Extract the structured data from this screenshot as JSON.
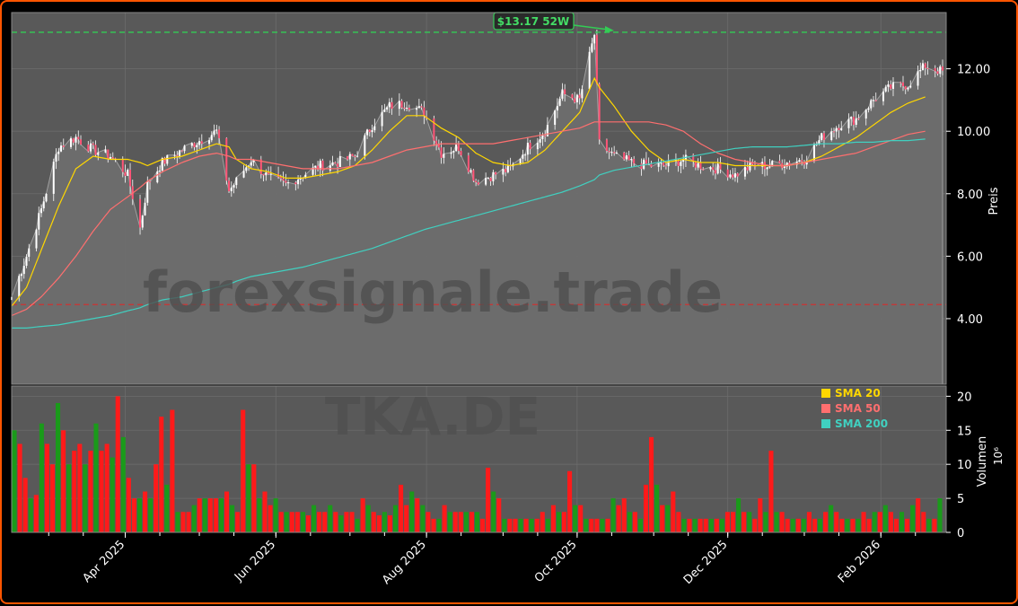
{
  "title": "",
  "watermark": {
    "line1": "forexsignale.trade",
    "line2": "TKA.DE"
  },
  "colors": {
    "background": "#000000",
    "panel": "#595959",
    "border": "#ff5500",
    "up": "#1a9a1a",
    "down": "#ff1a1a",
    "sma20": "#ffd700",
    "sma50": "#ff6f6f",
    "sma200": "#40d0c0",
    "high_line": "#33cc55",
    "low_line": "#cc3333"
  },
  "chart_data": [
    {
      "type": "line",
      "subtype": "candlestick-with-area",
      "ylabel": "Preis",
      "ylim": [
        1.9,
        13.8
      ],
      "yticks": [
        "4.00",
        "6.00",
        "8.00",
        "10.00",
        "12.00"
      ],
      "ytick_values": [
        4,
        6,
        8,
        10,
        12
      ],
      "grid": true,
      "high_52w": {
        "label": "$13.17 52W",
        "value": 13.17,
        "date": "2025-10-08"
      },
      "low_reference": {
        "value": 4.45
      },
      "x_range": [
        "2025-02-14",
        "2026-02-26"
      ],
      "xtick_labels": [
        "Apr 2025",
        "Jun 2025",
        "Aug 2025",
        "Oct 2025",
        "Dec 2025",
        "Feb 2026"
      ],
      "xtick_dates": [
        "2025-04-01",
        "2025-06-01",
        "2025-08-01",
        "2025-10-01",
        "2025-12-01",
        "2026-02-01"
      ],
      "close_series": {
        "dates": [
          "2025-02-14",
          "2025-02-20",
          "2025-02-26",
          "2025-03-05",
          "2025-03-12",
          "2025-03-19",
          "2025-03-26",
          "2025-04-02",
          "2025-04-07",
          "2025-04-10",
          "2025-04-16",
          "2025-04-24",
          "2025-05-01",
          "2025-05-08",
          "2025-05-13",
          "2025-05-16",
          "2025-05-22",
          "2025-05-29",
          "2025-06-05",
          "2025-06-12",
          "2025-06-19",
          "2025-06-26",
          "2025-07-03",
          "2025-07-10",
          "2025-07-17",
          "2025-07-24",
          "2025-07-31",
          "2025-08-07",
          "2025-08-14",
          "2025-08-21",
          "2025-08-28",
          "2025-09-04",
          "2025-09-11",
          "2025-09-18",
          "2025-09-25",
          "2025-10-02",
          "2025-10-08",
          "2025-10-10",
          "2025-10-16",
          "2025-10-23",
          "2025-10-30",
          "2025-11-06",
          "2025-11-13",
          "2025-11-20",
          "2025-11-27",
          "2025-12-04",
          "2025-12-11",
          "2025-12-18",
          "2025-12-25",
          "2026-01-01",
          "2026-01-08",
          "2026-01-15",
          "2026-01-22",
          "2026-01-29",
          "2026-02-05",
          "2026-02-12",
          "2026-02-19",
          "2026-02-26"
        ],
        "values": [
          4.7,
          6.0,
          7.5,
          9.5,
          9.8,
          9.4,
          9.2,
          8.6,
          6.9,
          8.3,
          9.0,
          9.4,
          9.7,
          10.0,
          8.1,
          8.4,
          9.1,
          8.5,
          8.3,
          8.6,
          8.9,
          9.0,
          9.2,
          10.2,
          10.8,
          10.9,
          10.6,
          9.3,
          9.5,
          8.4,
          8.6,
          8.8,
          9.5,
          10.0,
          11.2,
          11.0,
          13.1,
          9.6,
          9.2,
          9.0,
          8.9,
          8.9,
          9.1,
          8.9,
          8.8,
          8.6,
          8.9,
          8.9,
          9.0,
          9.1,
          9.8,
          10.2,
          10.4,
          11.0,
          11.4,
          11.5,
          12.1,
          11.9
        ]
      },
      "series": [
        {
          "name": "SMA 20",
          "values": [
            4.4,
            5.0,
            6.2,
            7.6,
            8.8,
            9.2,
            9.1,
            9.1,
            9.0,
            8.9,
            9.1,
            9.2,
            9.4,
            9.6,
            9.5,
            9.1,
            8.8,
            8.7,
            8.5,
            8.5,
            8.6,
            8.7,
            8.9,
            9.4,
            10.0,
            10.5,
            10.5,
            10.1,
            9.8,
            9.3,
            9.0,
            8.9,
            9.0,
            9.4,
            10.0,
            10.6,
            11.7,
            11.4,
            10.8,
            10.0,
            9.4,
            9.0,
            9.1,
            9.0,
            9.0,
            8.9,
            8.9,
            8.9,
            8.9,
            9.0,
            9.2,
            9.5,
            9.8,
            10.2,
            10.6,
            10.9,
            11.1,
            11.2
          ]
        },
        {
          "name": "SMA 50",
          "values": [
            4.1,
            4.3,
            4.7,
            5.3,
            6.0,
            6.8,
            7.5,
            7.9,
            8.2,
            8.4,
            8.7,
            9.0,
            9.2,
            9.3,
            9.2,
            9.1,
            9.1,
            9.0,
            8.9,
            8.8,
            8.8,
            8.8,
            8.9,
            9.0,
            9.2,
            9.4,
            9.5,
            9.6,
            9.6,
            9.6,
            9.6,
            9.7,
            9.8,
            9.9,
            10.0,
            10.1,
            10.3,
            10.3,
            10.3,
            10.3,
            10.3,
            10.2,
            10.0,
            9.6,
            9.3,
            9.1,
            9.0,
            8.9,
            8.9,
            9.0,
            9.1,
            9.2,
            9.3,
            9.5,
            9.7,
            9.9,
            10.0,
            10.1
          ]
        },
        {
          "name": "SMA 200",
          "values": [
            3.7,
            3.7,
            3.75,
            3.8,
            3.9,
            4.0,
            4.1,
            4.25,
            4.35,
            4.45,
            4.6,
            4.7,
            4.85,
            5.0,
            5.1,
            5.2,
            5.35,
            5.45,
            5.55,
            5.65,
            5.8,
            5.95,
            6.1,
            6.25,
            6.45,
            6.65,
            6.85,
            7.0,
            7.15,
            7.3,
            7.45,
            7.6,
            7.75,
            7.9,
            8.05,
            8.25,
            8.45,
            8.6,
            8.75,
            8.85,
            8.95,
            9.05,
            9.15,
            9.25,
            9.35,
            9.45,
            9.5,
            9.5,
            9.5,
            9.55,
            9.6,
            9.6,
            9.65,
            9.65,
            9.7,
            9.7,
            9.75,
            9.75
          ]
        }
      ]
    },
    {
      "type": "bar",
      "ylabel": "Volumen",
      "yscale_label": "10⁶",
      "ylim": [
        0,
        21.5
      ],
      "yticks": [
        "0",
        "5",
        "10",
        "15",
        "20"
      ],
      "ytick_values": [
        0,
        5,
        10,
        15,
        20
      ],
      "volume_values": [
        15,
        13,
        8,
        5,
        5.5,
        16,
        13,
        10,
        19,
        15,
        10,
        12,
        13,
        10,
        12,
        16,
        12,
        13,
        11,
        20,
        14,
        8,
        5,
        5,
        6,
        5,
        10,
        17,
        7,
        18,
        3,
        3,
        3,
        4,
        5,
        5,
        5,
        5,
        5,
        6,
        4,
        3,
        18,
        10,
        10,
        5,
        6,
        4,
        5,
        3,
        3,
        3,
        3,
        3,
        2.5,
        4,
        3,
        3,
        4,
        3,
        2.5,
        3,
        3,
        2,
        5,
        4,
        3,
        2.5,
        3,
        2.5,
        4,
        7,
        4,
        6,
        5,
        4,
        3,
        2,
        2,
        4,
        3,
        3,
        3,
        3,
        3,
        3,
        2,
        9.5,
        6,
        5,
        2,
        2,
        2,
        2,
        2,
        2,
        2,
        3,
        2,
        4,
        3,
        3,
        9,
        4,
        4,
        2,
        2,
        2,
        2,
        2,
        5,
        4,
        5,
        3,
        3,
        2,
        7,
        14,
        7,
        4,
        4,
        6,
        3,
        2,
        2,
        2,
        2,
        2,
        2,
        2,
        2,
        3,
        3,
        5,
        3,
        3,
        2,
        5,
        3,
        12,
        3,
        3,
        2,
        2,
        2,
        2,
        3,
        2,
        2,
        3,
        4,
        3,
        2,
        2,
        2,
        2,
        3,
        2,
        3,
        3,
        4,
        3,
        2,
        3,
        2,
        4,
        5,
        3,
        2,
        2,
        5
      ]
    }
  ],
  "legend": {
    "placement": "bottom-right",
    "items": [
      {
        "label": "SMA 20",
        "color": "#ffd700"
      },
      {
        "label": "SMA 50",
        "color": "#ff6f6f"
      },
      {
        "label": "SMA 200",
        "color": "#40d0c0"
      }
    ]
  }
}
